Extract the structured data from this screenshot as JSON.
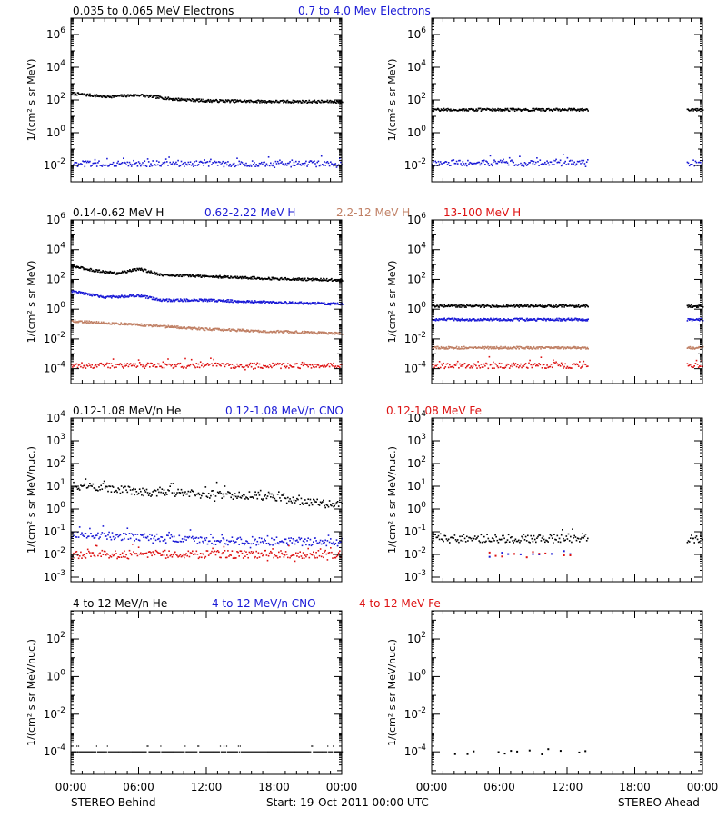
{
  "colors": {
    "black": "#000000",
    "blue": "#1a1ad6",
    "tan": "#c08065",
    "red": "#dd1111"
  },
  "footer": {
    "left_label": "STEREO Behind",
    "center_label": "Start: 19-Oct-2011 00:00 UTC",
    "right_label": "STEREO Ahead"
  },
  "chart_data": [
    {
      "type": "scatter",
      "title_parts": [
        {
          "text": "0.035 to 0.065 MeV Electrons",
          "color": "black"
        },
        {
          "text": "0.7 to 4.0 Mev Electrons",
          "color": "blue"
        }
      ],
      "ylabel": "1/(cm² s sr MeV)",
      "yscale": "log",
      "ylim_exp": [
        -3,
        7
      ],
      "ytick_exps": [
        -2,
        0,
        2,
        4,
        6
      ],
      "x_ticks": [
        "00:00",
        "06:00",
        "12:00",
        "18:00",
        "00:00"
      ],
      "xlim_hours": [
        0,
        24
      ],
      "panels": [
        {
          "name": "STEREO Behind",
          "series": [
            {
              "name": "0.035 to 0.065 MeV Electrons",
              "color": "black",
              "style": "line",
              "segments": [
                [
                  0,
                  24
                ]
              ],
              "profile": [
                [
                  0,
                  2.4
                ],
                [
                  3,
                  2.2
                ],
                [
                  6,
                  2.3
                ],
                [
                  9,
                  2.05
                ],
                [
                  12,
                  1.95
                ],
                [
                  18,
                  1.9
                ],
                [
                  24,
                  1.9
                ]
              ]
            },
            {
              "name": "0.7 to 4.0 Mev Electrons",
              "color": "blue",
              "style": "scatter",
              "segments": [
                [
                  0,
                  24
                ]
              ],
              "profile": [
                [
                  0,
                  -1.9
                ],
                [
                  24,
                  -1.9
                ]
              ]
            }
          ]
        },
        {
          "name": "STEREO Ahead",
          "series": [
            {
              "name": "0.035 to 0.065 MeV Electrons",
              "color": "black",
              "style": "line",
              "segments": [
                [
                  0,
                  13.8
                ],
                [
                  22.6,
                  24
                ]
              ],
              "profile": [
                [
                  0,
                  1.4
                ],
                [
                  24,
                  1.4
                ]
              ]
            },
            {
              "name": "0.7 to 4.0 Mev Electrons",
              "color": "blue",
              "style": "scatter",
              "segments": [
                [
                  0,
                  13.8
                ],
                [
                  22.6,
                  24
                ]
              ],
              "profile": [
                [
                  0,
                  -1.85
                ],
                [
                  24,
                  -1.85
                ]
              ]
            }
          ]
        }
      ]
    },
    {
      "type": "scatter",
      "title_parts": [
        {
          "text": "0.14-0.62 MeV H",
          "color": "black"
        },
        {
          "text": "0.62-2.22 MeV H",
          "color": "blue"
        },
        {
          "text": "2.2-12 MeV H",
          "color": "tan"
        },
        {
          "text": "13-100 MeV H",
          "color": "red"
        }
      ],
      "ylabel": "1/(cm² s sr MeV)",
      "yscale": "log",
      "ylim_exp": [
        -5,
        6
      ],
      "ytick_exps": [
        -4,
        -2,
        0,
        2,
        4,
        6
      ],
      "x_ticks": [
        "00:00",
        "06:00",
        "12:00",
        "18:00",
        "00:00"
      ],
      "xlim_hours": [
        0,
        24
      ],
      "panels": [
        {
          "name": "STEREO Behind",
          "series": [
            {
              "name": "0.14-0.62 MeV H",
              "color": "black",
              "style": "line",
              "segments": [
                [
                  0,
                  24
                ]
              ],
              "profile": [
                [
                  0,
                  2.9
                ],
                [
                  2,
                  2.6
                ],
                [
                  4,
                  2.4
                ],
                [
                  6,
                  2.7
                ],
                [
                  8,
                  2.3
                ],
                [
                  12,
                  2.2
                ],
                [
                  18,
                  2.05
                ],
                [
                  24,
                  1.95
                ]
              ]
            },
            {
              "name": "0.62-2.22 MeV H",
              "color": "blue",
              "style": "line",
              "segments": [
                [
                  0,
                  24
                ]
              ],
              "profile": [
                [
                  0,
                  1.2
                ],
                [
                  3,
                  0.8
                ],
                [
                  6,
                  0.9
                ],
                [
                  8,
                  0.6
                ],
                [
                  12,
                  0.6
                ],
                [
                  18,
                  0.45
                ],
                [
                  24,
                  0.35
                ]
              ]
            },
            {
              "name": "2.2-12 MeV H",
              "color": "tan",
              "style": "line",
              "segments": [
                [
                  0,
                  24
                ]
              ],
              "profile": [
                [
                  0,
                  -0.8
                ],
                [
                  6,
                  -1.05
                ],
                [
                  12,
                  -1.35
                ],
                [
                  18,
                  -1.5
                ],
                [
                  24,
                  -1.65
                ]
              ]
            },
            {
              "name": "13-100 MeV H",
              "color": "red",
              "style": "scatter",
              "segments": [
                [
                  0,
                  24
                ]
              ],
              "profile": [
                [
                  0,
                  -3.8
                ],
                [
                  24,
                  -3.8
                ]
              ]
            }
          ]
        },
        {
          "name": "STEREO Ahead",
          "series": [
            {
              "name": "0.14-0.62 MeV H",
              "color": "black",
              "style": "line",
              "segments": [
                [
                  0,
                  13.8
                ],
                [
                  22.6,
                  24
                ]
              ],
              "profile": [
                [
                  0,
                  0.2
                ],
                [
                  24,
                  0.2
                ]
              ]
            },
            {
              "name": "0.62-2.22 MeV H",
              "color": "blue",
              "style": "line",
              "segments": [
                [
                  0,
                  13.8
                ],
                [
                  22.6,
                  24
                ]
              ],
              "profile": [
                [
                  0,
                  -0.7
                ],
                [
                  24,
                  -0.7
                ]
              ]
            },
            {
              "name": "2.2-12 MeV H",
              "color": "tan",
              "style": "line",
              "segments": [
                [
                  0,
                  13.8
                ],
                [
                  22.6,
                  24
                ]
              ],
              "profile": [
                [
                  0,
                  -2.6
                ],
                [
                  24,
                  -2.6
                ]
              ]
            },
            {
              "name": "13-100 MeV H",
              "color": "red",
              "style": "scatter",
              "segments": [
                [
                  0,
                  13.8
                ],
                [
                  22.6,
                  24
                ]
              ],
              "profile": [
                [
                  0,
                  -3.8
                ],
                [
                  24,
                  -3.8
                ]
              ]
            }
          ]
        }
      ]
    },
    {
      "type": "scatter",
      "title_parts": [
        {
          "text": "0.12-1.08 MeV/n He",
          "color": "black"
        },
        {
          "text": "0.12-1.08 MeV/n CNO",
          "color": "blue"
        },
        {
          "text": "0.12-1.08 MeV Fe",
          "color": "red"
        }
      ],
      "ylabel": "1/(cm² s sr MeV/nuc.)",
      "yscale": "log",
      "ylim_exp": [
        -3.2,
        4
      ],
      "ytick_exps": [
        -3,
        -2,
        -1,
        0,
        1,
        2,
        3,
        4
      ],
      "x_ticks": [
        "00:00",
        "06:00",
        "12:00",
        "18:00",
        "00:00"
      ],
      "xlim_hours": [
        0,
        24
      ],
      "panels": [
        {
          "name": "STEREO Behind",
          "series": [
            {
              "name": "0.12-1.08 MeV/n He",
              "color": "black",
              "style": "scatter",
              "segments": [
                [
                  0,
                  24
                ]
              ],
              "profile": [
                [
                  0,
                  1.0
                ],
                [
                  3,
                  0.95
                ],
                [
                  6,
                  0.75
                ],
                [
                  12,
                  0.65
                ],
                [
                  18,
                  0.55
                ],
                [
                  20,
                  0.3
                ],
                [
                  24,
                  0.2
                ]
              ]
            },
            {
              "name": "0.12-1.08 MeV/n CNO",
              "color": "blue",
              "style": "scatter",
              "segments": [
                [
                  0,
                  24
                ]
              ],
              "profile": [
                [
                  0,
                  -1.1
                ],
                [
                  12,
                  -1.4
                ],
                [
                  24,
                  -1.45
                ]
              ]
            },
            {
              "name": "0.12-1.08 MeV Fe",
              "color": "red",
              "style": "scatter",
              "segments": [
                [
                  0,
                  24
                ]
              ],
              "profile": [
                [
                  0,
                  -2.0
                ],
                [
                  24,
                  -2.0
                ]
              ]
            }
          ]
        },
        {
          "name": "STEREO Ahead",
          "series": [
            {
              "name": "0.12-1.08 MeV/n He",
              "color": "black",
              "style": "scatter",
              "segments": [
                [
                  0,
                  13.8
                ],
                [
                  22.6,
                  24
                ]
              ],
              "profile": [
                [
                  0,
                  -1.3
                ],
                [
                  24,
                  -1.3
                ]
              ]
            },
            {
              "name": "0.12-1.08 MeV/n CNO",
              "color": "blue",
              "style": "sparse",
              "segments": [
                [
                  4.5,
                  12.5
                ]
              ],
              "profile": [
                [
                  0,
                  -2.0
                ],
                [
                  24,
                  -2.0
                ]
              ]
            },
            {
              "name": "0.12-1.08 MeV Fe",
              "color": "red",
              "style": "sparse",
              "segments": [
                [
                  4.5,
                  12.5
                ]
              ],
              "profile": [
                [
                  0,
                  -2.0
                ],
                [
                  24,
                  -2.0
                ]
              ]
            }
          ]
        }
      ]
    },
    {
      "type": "scatter",
      "title_parts": [
        {
          "text": "4 to 12 MeV/n He",
          "color": "black"
        },
        {
          "text": "4 to 12 MeV/n CNO",
          "color": "blue"
        },
        {
          "text": "4 to 12 MeV Fe",
          "color": "red"
        }
      ],
      "ylabel": "1/(cm² s sr MeV/nuc.)",
      "yscale": "log",
      "ylim_exp": [
        -5.2,
        3.5
      ],
      "ytick_exps": [
        -4,
        -2,
        0,
        2
      ],
      "x_ticks": [
        "00:00",
        "06:00",
        "12:00",
        "18:00",
        "00:00"
      ],
      "xlim_hours": [
        0,
        24
      ],
      "panels": [
        {
          "name": "STEREO Behind",
          "series": [
            {
              "name": "4 to 12 MeV/n He",
              "color": "black",
              "style": "floor",
              "segments": [
                [
                  0,
                  24
                ]
              ],
              "profile": [
                [
                  0,
                  -4.0
                ],
                [
                  24,
                  -4.0
                ]
              ]
            }
          ]
        },
        {
          "name": "STEREO Ahead",
          "series": [
            {
              "name": "4 to 12 MeV/n He",
              "color": "black",
              "style": "sparse",
              "segments": [
                [
                  2,
                  13.8
                ]
              ],
              "profile": [
                [
                  0,
                  -4.0
                ],
                [
                  24,
                  -4.0
                ]
              ]
            }
          ]
        }
      ]
    }
  ]
}
